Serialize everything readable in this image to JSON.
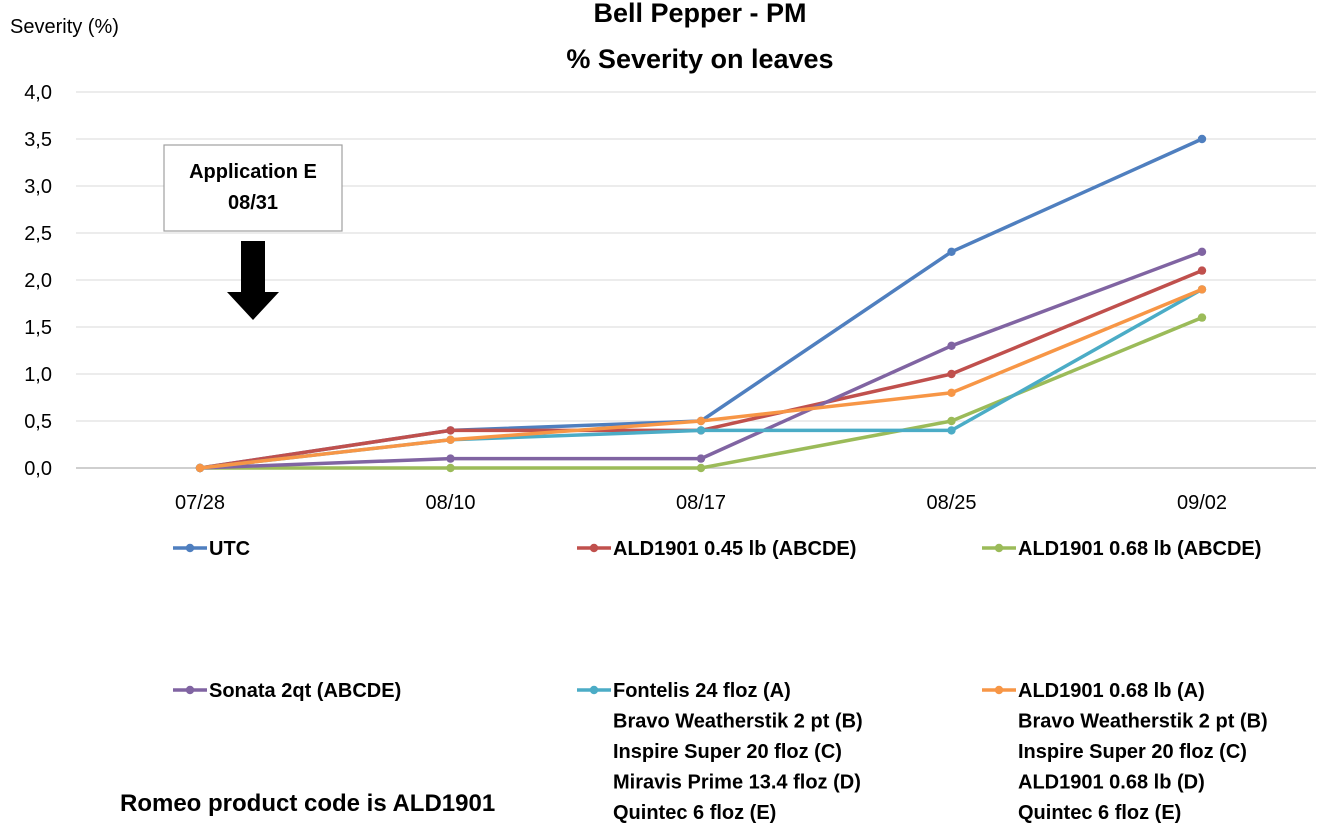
{
  "chart_data": {
    "type": "line",
    "title": "Bell Pepper - PM",
    "subtitle": "% Severity on leaves",
    "ylabel": "Severity (%)",
    "xlabel": "",
    "categories": [
      "07/28",
      "08/10",
      "08/17",
      "08/25",
      "09/02"
    ],
    "ylim": [
      0,
      4
    ],
    "yticks": [
      "0,0",
      "0,5",
      "1,0",
      "1,5",
      "2,0",
      "2,5",
      "3,0",
      "3,5",
      "4,0"
    ],
    "grid": true,
    "legend_position": "bottom",
    "series": [
      {
        "name": "UTC",
        "color": "#4F7FBF",
        "values": [
          0,
          0.4,
          0.5,
          2.3,
          3.5
        ]
      },
      {
        "name": "ALD1901 0.45 lb (ABCDE)",
        "color": "#C0504D",
        "values": [
          0,
          0.4,
          0.4,
          1.0,
          2.1
        ]
      },
      {
        "name": "ALD1901 0.68 lb (ABCDE)",
        "color": "#9BBB59",
        "values": [
          0,
          0,
          0,
          0.5,
          1.6
        ]
      },
      {
        "name": "Sonata 2qt (ABCDE)",
        "color": "#8064A2",
        "values": [
          0,
          0.1,
          0.1,
          1.3,
          2.3
        ]
      },
      {
        "name": "Fontelis 24 floz (A)",
        "extra_lines": [
          "Bravo Weatherstik 2 pt (B)",
          "Inspire Super 20 floz (C)",
          "Miravis Prime 13.4 floz (D)",
          "Quintec 6 floz (E)"
        ],
        "color": "#4BACC6",
        "values": [
          0,
          0.3,
          0.4,
          0.4,
          1.9
        ]
      },
      {
        "name": "ALD1901 0.68 lb (A)",
        "extra_lines": [
          "Bravo Weatherstik 2 pt (B)",
          "Inspire Super 20 floz (C)",
          "ALD1901 0.68 lb (D)",
          "Quintec 6 floz (E)"
        ],
        "color": "#F79646",
        "values": [
          0,
          0.3,
          0.5,
          0.8,
          1.9
        ]
      }
    ],
    "annotations": [
      {
        "lines": [
          "Application E",
          "08/31"
        ]
      }
    ]
  },
  "footer": {
    "note": "Romeo product code is ALD1901"
  }
}
